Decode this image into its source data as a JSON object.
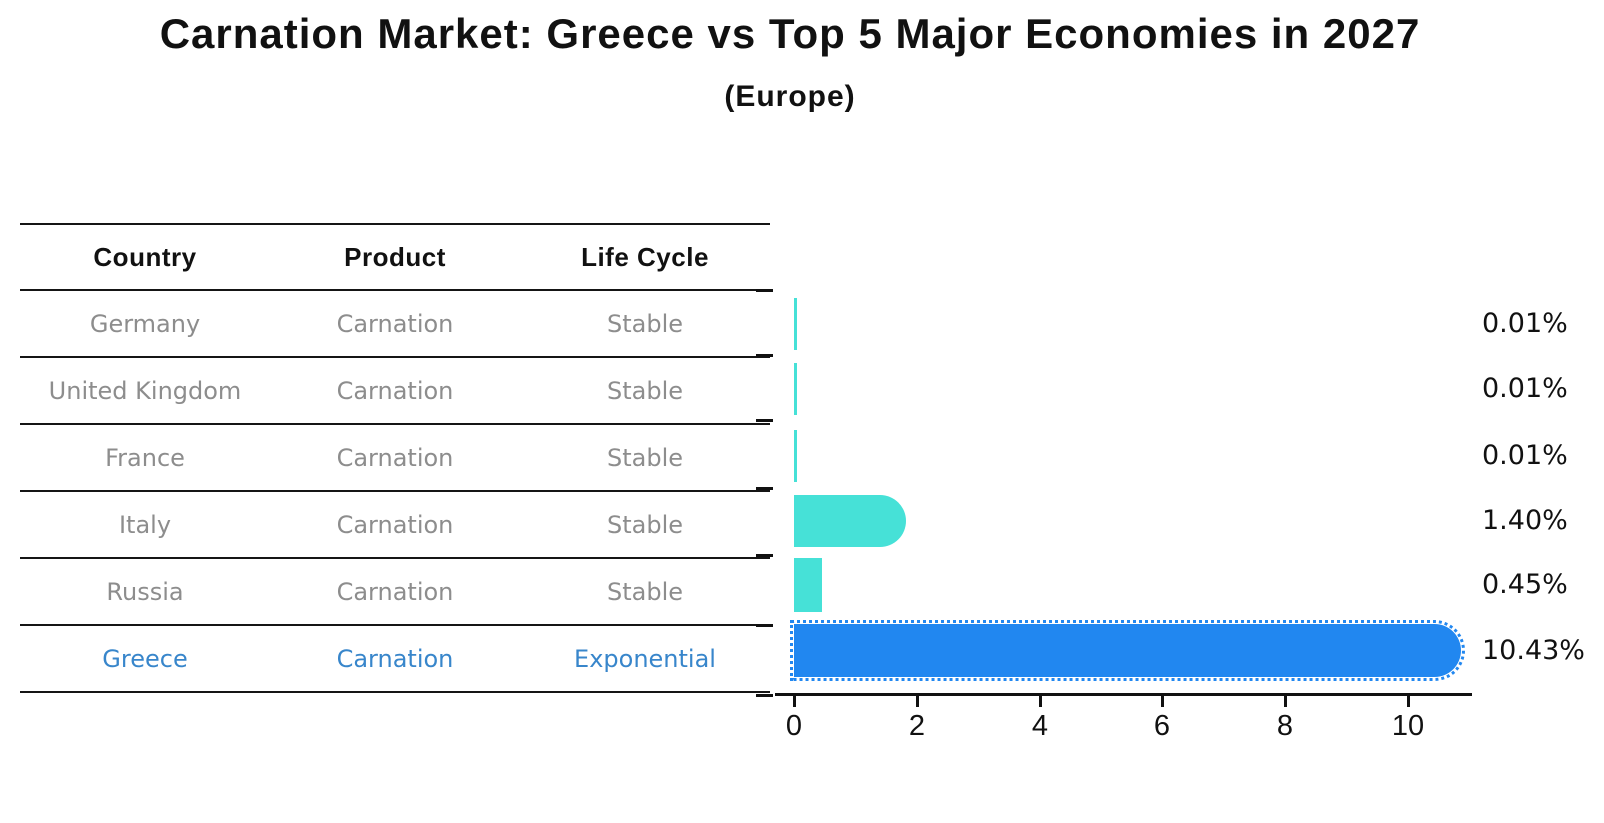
{
  "title": "Carnation Market: Greece vs Top 5 Major Economies in 2027",
  "subtitle": "(Europe)",
  "table": {
    "headers": [
      "Country",
      "Product",
      "Life Cycle"
    ],
    "rows": [
      {
        "country": "Germany",
        "product": "Carnation",
        "life_cycle": "Stable"
      },
      {
        "country": "United Kingdom",
        "product": "Carnation",
        "life_cycle": "Stable"
      },
      {
        "country": "France",
        "product": "Carnation",
        "life_cycle": "Stable"
      },
      {
        "country": "Italy",
        "product": "Carnation",
        "life_cycle": "Stable"
      },
      {
        "country": "Russia",
        "product": "Carnation",
        "life_cycle": "Stable"
      },
      {
        "country": "Greece",
        "product": "Carnation",
        "life_cycle": "Exponential"
      }
    ],
    "highlight_row": "Greece"
  },
  "chart_data": {
    "type": "bar",
    "orientation": "horizontal",
    "title": "Carnation Market: Greece vs Top 5 Major Economies in 2027",
    "subtitle": "(Europe)",
    "categories": [
      "Germany",
      "United Kingdom",
      "France",
      "Italy",
      "Russia",
      "Greece"
    ],
    "values": [
      0.01,
      0.01,
      0.01,
      1.4,
      0.45,
      10.43
    ],
    "value_labels": [
      "0.01%",
      "0.01%",
      "0.01%",
      "1.40%",
      "0.45%",
      "10.43%"
    ],
    "xlabel": "",
    "ylabel": "",
    "xlim": [
      0,
      11.1
    ],
    "xticks": [
      0,
      2,
      4,
      6,
      8,
      10
    ],
    "grid": false,
    "legend": "none",
    "bar_color": "#46E1D7",
    "highlight_color": "#2187F0",
    "highlight_index": 5,
    "highlight_style": "dotted-outline-rounded",
    "axis_color": "#111111",
    "muted_text_color": "#8d8d8d",
    "highlight_text_color": "#3886CB"
  }
}
